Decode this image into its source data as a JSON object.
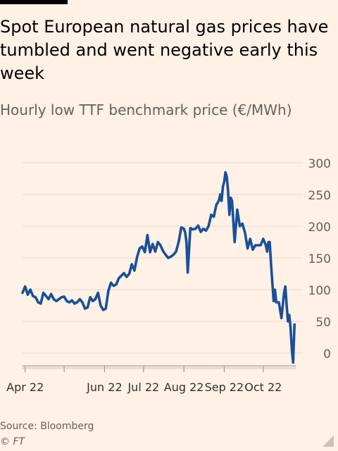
{
  "header": {
    "title": "Spot European natural gas prices have tumbled and went negative early this week",
    "subtitle": "Hourly low TTF benchmark price (€/MWh)"
  },
  "footer": {
    "source": "Source: Bloomberg",
    "credit": "© FT"
  },
  "colors": {
    "line": "#1a5096",
    "background": "#fff1e5",
    "grid": "#e6d9ce",
    "axis_text": "#66605c"
  },
  "chart_data": {
    "type": "line",
    "title": "Spot European natural gas prices have tumbled and went negative early this week",
    "subtitle": "Hourly low TTF benchmark price (€/MWh)",
    "xlabel": "",
    "ylabel": "",
    "ylim": [
      -20,
      300
    ],
    "yticks": [
      0,
      50,
      100,
      150,
      200,
      250,
      300
    ],
    "ytick_labels": [
      "0",
      "50",
      "100",
      "150",
      "200",
      "250",
      "300"
    ],
    "y_axis_position": "right",
    "grid": true,
    "xlim": [
      "2022-03-30",
      "2022-10-26"
    ],
    "xticks": [
      {
        "date": "2022-04-01",
        "label": "Apr 22"
      },
      {
        "date": "2022-05-01",
        "label": ""
      },
      {
        "date": "2022-06-01",
        "label": "Jun 22"
      },
      {
        "date": "2022-07-01",
        "label": "Jul 22"
      },
      {
        "date": "2022-08-01",
        "label": "Aug 22"
      },
      {
        "date": "2022-09-01",
        "label": "Sep 22"
      },
      {
        "date": "2022-10-01",
        "label": "Oct 22"
      }
    ],
    "series": [
      {
        "x": [
          "2022-03-30",
          "2022-04-01",
          "2022-04-03",
          "2022-04-05",
          "2022-04-07",
          "2022-04-09",
          "2022-04-11",
          "2022-04-13",
          "2022-04-15",
          "2022-04-17",
          "2022-04-19",
          "2022-04-21",
          "2022-04-23",
          "2022-04-25",
          "2022-04-27",
          "2022-04-29",
          "2022-05-01",
          "2022-05-03",
          "2022-05-05",
          "2022-05-07",
          "2022-05-09",
          "2022-05-11",
          "2022-05-13",
          "2022-05-15",
          "2022-05-17",
          "2022-05-19",
          "2022-05-21",
          "2022-05-23",
          "2022-05-25",
          "2022-05-27",
          "2022-05-29",
          "2022-05-31",
          "2022-06-02",
          "2022-06-04",
          "2022-06-06",
          "2022-06-08",
          "2022-06-10",
          "2022-06-12",
          "2022-06-14",
          "2022-06-16",
          "2022-06-18",
          "2022-06-20",
          "2022-06-22",
          "2022-06-24",
          "2022-06-26",
          "2022-06-28",
          "2022-06-30",
          "2022-07-02",
          "2022-07-04",
          "2022-07-06",
          "2022-07-08",
          "2022-07-10",
          "2022-07-12",
          "2022-07-14",
          "2022-07-16",
          "2022-07-18",
          "2022-07-20",
          "2022-07-22",
          "2022-07-24",
          "2022-07-26",
          "2022-07-28",
          "2022-07-30",
          "2022-08-01",
          "2022-08-02",
          "2022-08-03",
          "2022-08-04",
          "2022-08-06",
          "2022-08-08",
          "2022-08-10",
          "2022-08-12",
          "2022-08-14",
          "2022-08-16",
          "2022-08-18",
          "2022-08-20",
          "2022-08-22",
          "2022-08-24",
          "2022-08-26",
          "2022-08-27",
          "2022-08-28",
          "2022-08-29",
          "2022-08-30",
          "2022-08-31",
          "2022-09-01",
          "2022-09-02",
          "2022-09-03",
          "2022-09-04",
          "2022-09-05",
          "2022-09-06",
          "2022-09-07",
          "2022-09-09",
          "2022-09-11",
          "2022-09-13",
          "2022-09-15",
          "2022-09-17",
          "2022-09-19",
          "2022-09-21",
          "2022-09-23",
          "2022-09-25",
          "2022-09-27",
          "2022-09-29",
          "2022-10-01",
          "2022-10-03",
          "2022-10-04",
          "2022-10-05",
          "2022-10-06",
          "2022-10-07",
          "2022-10-09",
          "2022-10-10",
          "2022-10-11",
          "2022-10-13",
          "2022-10-15",
          "2022-10-17",
          "2022-10-18",
          "2022-10-19",
          "2022-10-20",
          "2022-10-21",
          "2022-10-22",
          "2022-10-23",
          "2022-10-24",
          "2022-10-25"
        ],
        "values": [
          95,
          105,
          92,
          100,
          90,
          88,
          80,
          78,
          95,
          90,
          85,
          93,
          85,
          82,
          85,
          88,
          89,
          82,
          80,
          83,
          78,
          80,
          85,
          80,
          70,
          72,
          88,
          82,
          85,
          95,
          75,
          68,
          70,
          98,
          111,
          106,
          108,
          118,
          122,
          126,
          120,
          125,
          140,
          130,
          151,
          165,
          168,
          159,
          186,
          159,
          172,
          160,
          175,
          170,
          161,
          155,
          150,
          152,
          155,
          160,
          175,
          198,
          196,
          190,
          175,
          127,
          197,
          195,
          196,
          201,
          191,
          196,
          193,
          200,
          218,
          215,
          234,
          237,
          241,
          250,
          240,
          262,
          270,
          285,
          278,
          255,
          218,
          245,
          240,
          175,
          226,
          200,
          204,
          190,
          165,
          180,
          163,
          170,
          170,
          170,
          180,
          170,
          160,
          175,
          175,
          140,
          82,
          100,
          80,
          80,
          55,
          95,
          105,
          75,
          50,
          60,
          40,
          5,
          -15,
          45
        ]
      }
    ]
  }
}
